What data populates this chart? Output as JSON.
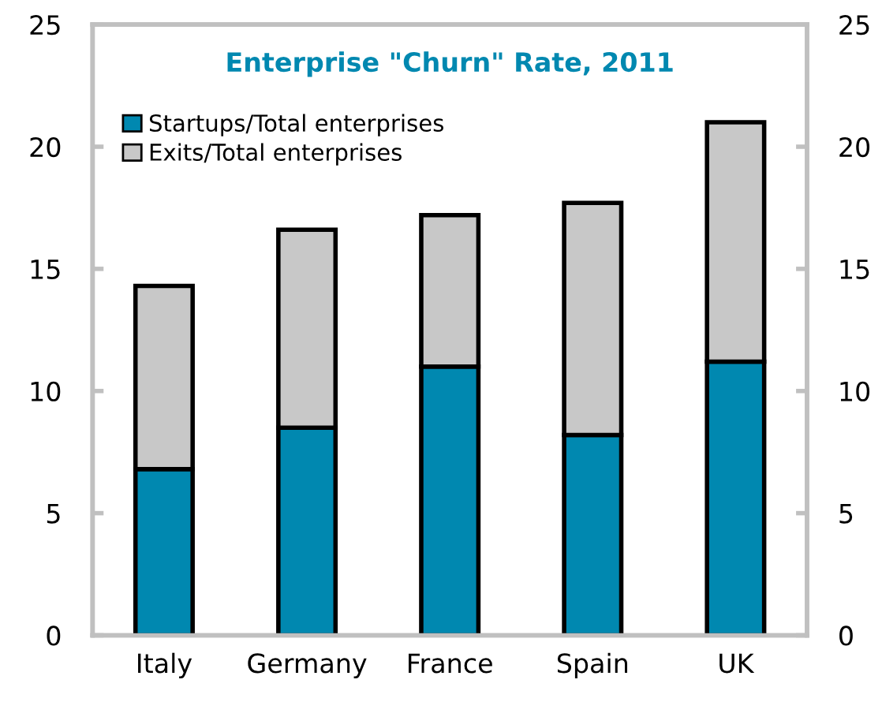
{
  "chart_data": {
    "type": "bar",
    "title": "Enterprise \"Churn\" Rate, 2011",
    "categories": [
      "Italy",
      "Germany",
      "France",
      "Spain",
      "UK"
    ],
    "stacked": true,
    "series": [
      {
        "name": "Startups/Total enterprises",
        "color": "#0088b0",
        "values": [
          6.8,
          8.5,
          11.0,
          8.2,
          11.2
        ]
      },
      {
        "name": "Exits/Total enterprises",
        "color": "#c8c8c8",
        "values": [
          7.5,
          8.1,
          6.2,
          9.5,
          9.8
        ]
      }
    ],
    "ylim": [
      0,
      25
    ],
    "yticks": [
      0,
      5,
      10,
      15,
      20,
      25
    ],
    "y2lim": [
      0,
      25
    ],
    "y2ticks": [
      0,
      5,
      10,
      15,
      20,
      25
    ],
    "grid": false,
    "legend": "top left"
  }
}
